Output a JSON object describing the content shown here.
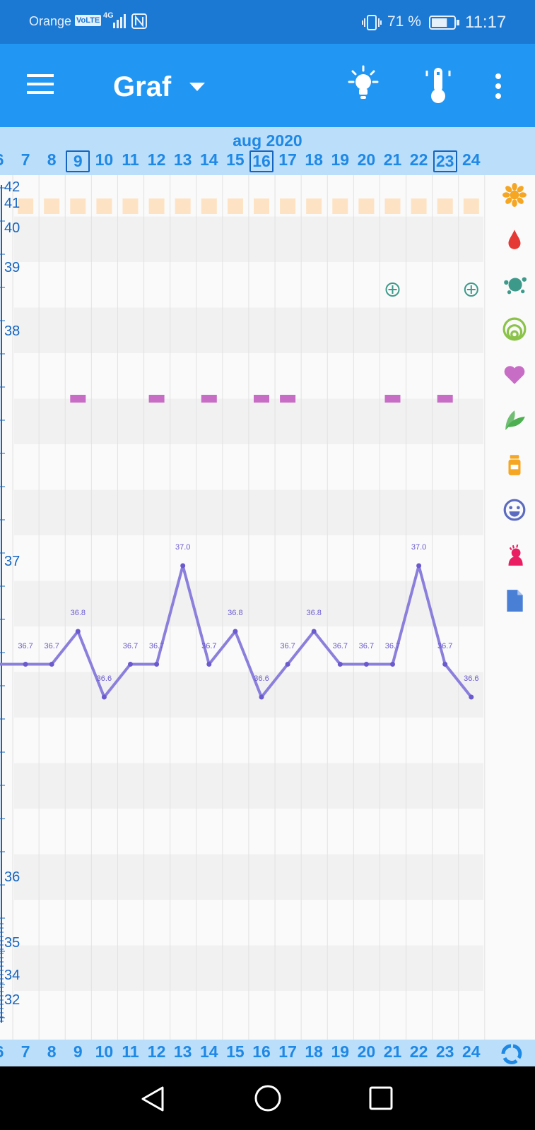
{
  "status_bar": {
    "carrier": "Orange",
    "volte": "VoLTE",
    "network": "4G",
    "battery_percent": "71 %",
    "battery_level": 0.71,
    "time": "11:17"
  },
  "app_bar": {
    "title": "Graf",
    "menu_icon": "hamburger-menu-icon",
    "dropdown_icon": "caret-down-icon",
    "tips_icon": "lightbulb-icon",
    "temperature_icon": "thermometer-icon",
    "more_icon": "more-vertical-icon"
  },
  "chart_header": {
    "month": "aug 2020"
  },
  "days": [
    "6",
    "7",
    "8",
    "9",
    "10",
    "11",
    "12",
    "13",
    "14",
    "15",
    "16",
    "17",
    "18",
    "19",
    "20",
    "21",
    "22",
    "23",
    "24"
  ],
  "highlighted_days": [
    "9",
    "16",
    "23"
  ],
  "y_axis_labels": [
    "42",
    "41",
    "40",
    "39",
    "38",
    "37",
    "36",
    "35",
    "34",
    "32"
  ],
  "chart_data": {
    "type": "line",
    "x": [
      "6",
      "7",
      "8",
      "9",
      "10",
      "11",
      "12",
      "13",
      "14",
      "15",
      "16",
      "17",
      "18",
      "19",
      "20",
      "21",
      "22",
      "23",
      "24"
    ],
    "series": [
      {
        "values": [
          36.7,
          36.7,
          36.7,
          36.8,
          36.6,
          36.7,
          36.7,
          37.0,
          36.7,
          36.8,
          36.6,
          36.7,
          36.8,
          36.7,
          36.7,
          36.7,
          37.0,
          36.7,
          36.6
        ],
        "labels": [
          "36.7",
          "36.7",
          "36.7",
          "36.8",
          "36.6",
          "36.7",
          "36.7",
          "37.0",
          "36.7",
          "36.8",
          "36.6",
          "36.7",
          "36.8",
          "36.7",
          "36.7",
          "36.7",
          "37.0",
          "36.7",
          "36.6"
        ],
        "color": "#8b7fdc"
      }
    ],
    "marker_rows": {
      "flower_row_days": [
        "7",
        "8",
        "9",
        "10",
        "11",
        "12",
        "13",
        "14",
        "15",
        "16",
        "17",
        "18",
        "19",
        "20",
        "21",
        "22",
        "23",
        "24"
      ],
      "plus_circle_days": [
        "21",
        "24"
      ],
      "heart_row_days": [
        "9",
        "12",
        "14",
        "16",
        "17",
        "21",
        "23"
      ]
    },
    "colors": {
      "flower_row": "#fde3c4",
      "heart_row": "#c86dc6",
      "plus_circle": "#3d9a8b"
    }
  },
  "side_icons": [
    {
      "name": "flower-icon",
      "color": "#f5a623"
    },
    {
      "name": "blood-drop-icon",
      "color": "#e53935"
    },
    {
      "name": "splash-icon",
      "color": "#3d9a8b"
    },
    {
      "name": "cervix-rings-icon",
      "color": "#8bc34a"
    },
    {
      "name": "heart-icon",
      "color": "#c86dc6"
    },
    {
      "name": "leaves-icon",
      "color": "#4caf50"
    },
    {
      "name": "medicine-bottle-icon",
      "color": "#f5a623"
    },
    {
      "name": "smiley-face-icon",
      "color": "#5c6bc0"
    },
    {
      "name": "symptom-person-icon",
      "color": "#e91e63"
    },
    {
      "name": "document-icon",
      "color": "#4a7fd6"
    }
  ],
  "footer_icon": "cycle-refresh-icon",
  "nav_bar": {
    "back_icon": "nav-back-icon",
    "home_icon": "nav-home-icon",
    "recents_icon": "nav-recents-icon"
  }
}
